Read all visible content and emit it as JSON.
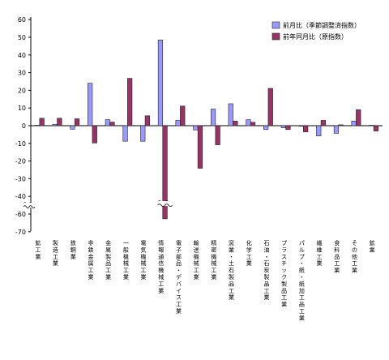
{
  "chart_data": {
    "type": "bar",
    "categories": [
      "鉱工業",
      "製造工業",
      "鉄鋼業",
      "非鉄金属工業",
      "金属製品工業",
      "一般機械工業",
      "電気機械工業",
      "情報通信機械工業",
      "電子部品・デバイス工業",
      "輸送機械工業",
      "精密機械工業",
      "窯業・土石製品工業",
      "化学工業",
      "石油・石炭製品工業",
      "プラスチック製品工業",
      "パルプ・紙・紙加工品工業",
      "繊維工業",
      "食料品工業",
      "その他工業",
      "鉱業"
    ],
    "series": [
      {
        "name": "前月比（季節調整済指数）",
        "color": "#9999ff",
        "values": [
          0.3,
          0.8,
          -2.0,
          24.0,
          3.4,
          -8.8,
          -8.8,
          48.5,
          3.0,
          -2.4,
          9.4,
          12.4,
          3.4,
          -2.2,
          -1.2,
          -0.3,
          -5.8,
          -4.3,
          2.6,
          0.3
        ]
      },
      {
        "name": "前年同月比（原指数）",
        "color": "#993366",
        "values": [
          4.2,
          4.2,
          3.9,
          -9.8,
          2.0,
          26.8,
          5.6,
          -62.7,
          11.1,
          -24.1,
          -10.8,
          2.6,
          1.9,
          21.1,
          -2.2,
          -3.5,
          3.0,
          0.5,
          9.0,
          -3.0
        ]
      }
    ],
    "yticks": [
      -70,
      -60,
      -40,
      -30,
      -20,
      -10,
      0,
      10,
      20,
      30,
      40,
      50,
      60
    ],
    "ylim": [
      -70,
      60
    ],
    "axis_break": {
      "between": [
        -60,
        -40
      ],
      "symbol": "wavy"
    },
    "bar_break": {
      "category_index": 7,
      "series_index": 1,
      "symbol": "wavy"
    },
    "legend_position": "top-right",
    "grid": false
  }
}
